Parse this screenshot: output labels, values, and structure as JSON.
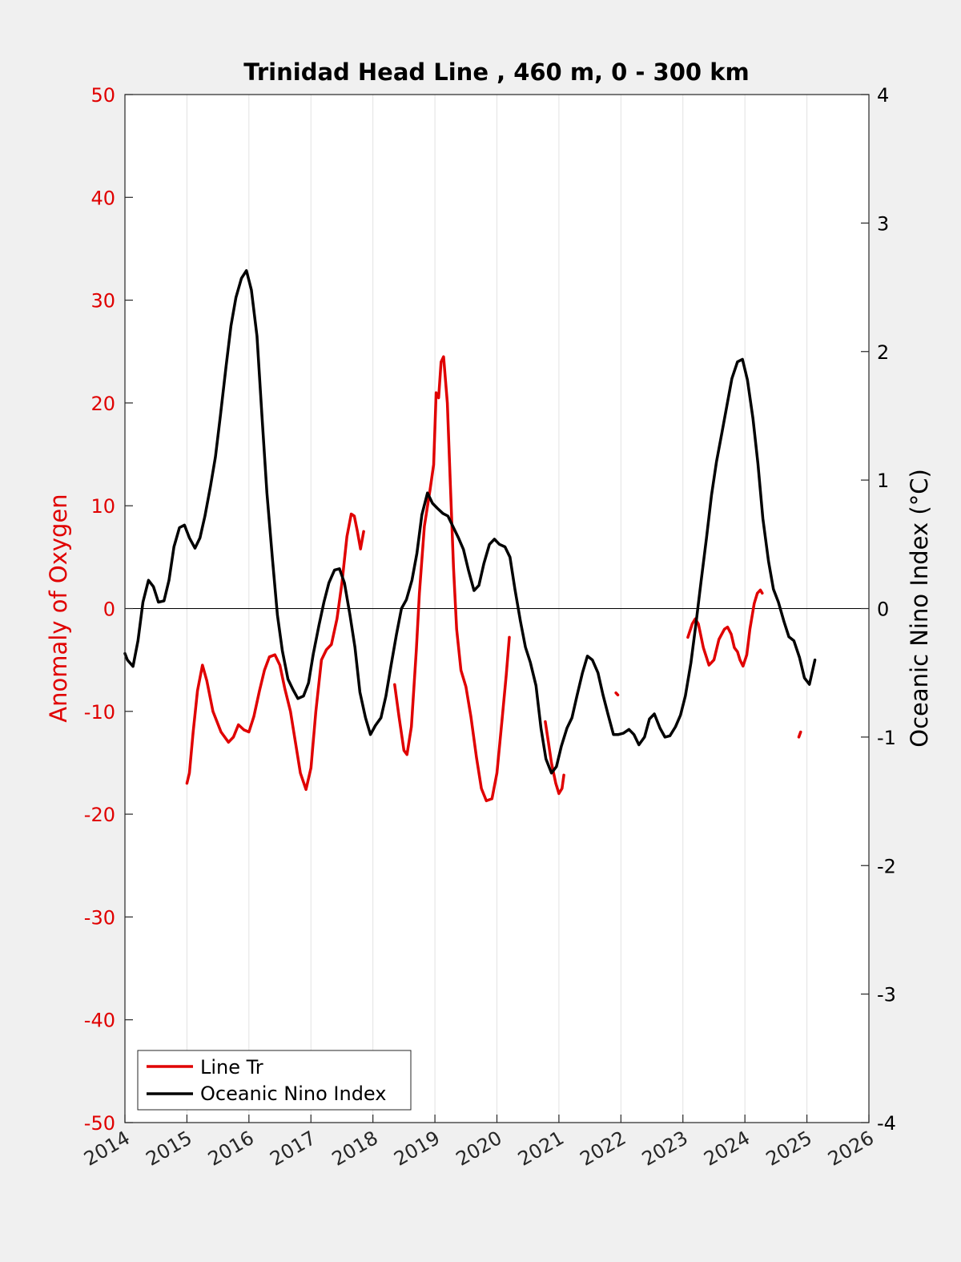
{
  "chart_data": {
    "type": "line",
    "title": "Trinidad Head Line , 460 m, 0 - 300 km",
    "ylabel_left": "Anomaly of Oxygen",
    "ylabel_right": "Oceanic Nino Index (°C)",
    "xlim": [
      2014,
      2026
    ],
    "ylim_left": [
      -50,
      50
    ],
    "ylim_right": [
      -4,
      4
    ],
    "x_ticks": [
      "2014",
      "2015",
      "2016",
      "2017",
      "2018",
      "2019",
      "2020",
      "2021",
      "2022",
      "2023",
      "2024",
      "2025",
      "2026"
    ],
    "y_ticks_left": [
      "50",
      "40",
      "30",
      "20",
      "10",
      "0",
      "-10",
      "-20",
      "-30",
      "-40",
      "-50"
    ],
    "y_ticks_right": [
      "4",
      "3",
      "2",
      "1",
      "0",
      "-1",
      "-2",
      "-3",
      "-4"
    ],
    "grid": "vertical",
    "legend_position": "bottom-left",
    "colors": {
      "line_tr": "#e00000",
      "oni": "#000000"
    },
    "series": [
      {
        "name": "Line Tr",
        "axis": "left",
        "segments": [
          [
            [
              2015.0,
              -17.0
            ],
            [
              2015.04,
              -16.0
            ],
            [
              2015.1,
              -12.0
            ],
            [
              2015.17,
              -8.0
            ],
            [
              2015.25,
              -5.5
            ],
            [
              2015.32,
              -7.0
            ],
            [
              2015.42,
              -10.0
            ],
            [
              2015.55,
              -12.0
            ],
            [
              2015.67,
              -13.0
            ],
            [
              2015.75,
              -12.5
            ],
            [
              2015.83,
              -11.3
            ],
            [
              2015.92,
              -11.8
            ],
            [
              2016.0,
              -12.0
            ],
            [
              2016.08,
              -10.5
            ],
            [
              2016.17,
              -8.0
            ],
            [
              2016.25,
              -6.0
            ],
            [
              2016.33,
              -4.7
            ],
            [
              2016.42,
              -4.5
            ],
            [
              2016.5,
              -5.5
            ],
            [
              2016.58,
              -7.8
            ],
            [
              2016.67,
              -10.0
            ],
            [
              2016.75,
              -13.0
            ],
            [
              2016.83,
              -16.0
            ],
            [
              2016.92,
              -17.6
            ],
            [
              2017.0,
              -15.5
            ],
            [
              2017.08,
              -10.0
            ],
            [
              2017.17,
              -5.0
            ],
            [
              2017.25,
              -4.0
            ],
            [
              2017.33,
              -3.5
            ],
            [
              2017.42,
              -1.0
            ],
            [
              2017.5,
              2.5
            ],
            [
              2017.58,
              7.0
            ],
            [
              2017.65,
              9.2
            ],
            [
              2017.7,
              9.0
            ],
            [
              2017.75,
              7.5
            ],
            [
              2017.8,
              5.8
            ],
            [
              2017.85,
              7.5
            ]
          ],
          [
            [
              2018.35,
              -7.4
            ],
            [
              2018.42,
              -10.5
            ],
            [
              2018.5,
              -13.8
            ],
            [
              2018.55,
              -14.2
            ],
            [
              2018.62,
              -11.5
            ],
            [
              2018.7,
              -4.0
            ],
            [
              2018.75,
              1.5
            ],
            [
              2018.83,
              8.0
            ],
            [
              2018.92,
              11.5
            ],
            [
              2018.98,
              14.0
            ],
            [
              2019.02,
              21.0
            ],
            [
              2019.06,
              20.5
            ],
            [
              2019.1,
              24.0
            ],
            [
              2019.14,
              24.5
            ],
            [
              2019.2,
              20.0
            ],
            [
              2019.25,
              12.0
            ],
            [
              2019.3,
              4.0
            ],
            [
              2019.35,
              -2.0
            ],
            [
              2019.42,
              -6.0
            ],
            [
              2019.5,
              -7.6
            ],
            [
              2019.58,
              -10.5
            ],
            [
              2019.67,
              -14.5
            ],
            [
              2019.75,
              -17.5
            ],
            [
              2019.83,
              -18.7
            ],
            [
              2019.92,
              -18.5
            ],
            [
              2020.0,
              -16.0
            ],
            [
              2020.08,
              -11.0
            ],
            [
              2020.15,
              -6.5
            ],
            [
              2020.2,
              -2.8
            ]
          ],
          [
            [
              2020.78,
              -11.0
            ],
            [
              2020.83,
              -13.0
            ],
            [
              2020.88,
              -15.0
            ],
            [
              2020.95,
              -17.0
            ],
            [
              2021.0,
              -18.0
            ],
            [
              2021.05,
              -17.5
            ],
            [
              2021.08,
              -16.2
            ]
          ],
          [
            [
              2021.92,
              -8.2
            ],
            [
              2021.95,
              -8.4
            ]
          ],
          [
            [
              2023.08,
              -2.8
            ],
            [
              2023.15,
              -1.5
            ],
            [
              2023.2,
              -1.0
            ],
            [
              2023.25,
              -1.5
            ],
            [
              2023.33,
              -3.8
            ],
            [
              2023.42,
              -5.5
            ],
            [
              2023.5,
              -5.0
            ],
            [
              2023.58,
              -3.0
            ],
            [
              2023.67,
              -2.0
            ],
            [
              2023.72,
              -1.8
            ],
            [
              2023.78,
              -2.5
            ],
            [
              2023.83,
              -3.8
            ],
            [
              2023.88,
              -4.2
            ],
            [
              2023.92,
              -5.0
            ],
            [
              2023.97,
              -5.6
            ],
            [
              2024.03,
              -4.5
            ],
            [
              2024.08,
              -2.0
            ],
            [
              2024.15,
              0.5
            ],
            [
              2024.2,
              1.5
            ],
            [
              2024.25,
              1.8
            ],
            [
              2024.28,
              1.5
            ]
          ],
          [
            [
              2024.87,
              -12.5
            ],
            [
              2024.9,
              -12.0
            ]
          ]
        ]
      },
      {
        "name": "Oceanic Nino Index",
        "axis": "right",
        "points": [
          [
            2014.0,
            -0.35
          ],
          [
            2014.04,
            -0.4
          ],
          [
            2014.13,
            -0.45
          ],
          [
            2014.21,
            -0.25
          ],
          [
            2014.29,
            0.05
          ],
          [
            2014.38,
            0.22
          ],
          [
            2014.46,
            0.17
          ],
          [
            2014.54,
            0.05
          ],
          [
            2014.63,
            0.06
          ],
          [
            2014.71,
            0.22
          ],
          [
            2014.79,
            0.48
          ],
          [
            2014.88,
            0.63
          ],
          [
            2014.96,
            0.65
          ],
          [
            2015.04,
            0.55
          ],
          [
            2015.13,
            0.47
          ],
          [
            2015.21,
            0.55
          ],
          [
            2015.29,
            0.72
          ],
          [
            2015.38,
            0.95
          ],
          [
            2015.46,
            1.18
          ],
          [
            2015.54,
            1.5
          ],
          [
            2015.63,
            1.88
          ],
          [
            2015.71,
            2.2
          ],
          [
            2015.79,
            2.42
          ],
          [
            2015.88,
            2.57
          ],
          [
            2015.96,
            2.63
          ],
          [
            2016.04,
            2.48
          ],
          [
            2016.13,
            2.12
          ],
          [
            2016.21,
            1.5
          ],
          [
            2016.29,
            0.9
          ],
          [
            2016.38,
            0.38
          ],
          [
            2016.46,
            -0.05
          ],
          [
            2016.54,
            -0.33
          ],
          [
            2016.63,
            -0.55
          ],
          [
            2016.71,
            -0.63
          ],
          [
            2016.79,
            -0.7
          ],
          [
            2016.88,
            -0.68
          ],
          [
            2016.96,
            -0.58
          ],
          [
            2017.04,
            -0.35
          ],
          [
            2017.13,
            -0.13
          ],
          [
            2017.21,
            0.05
          ],
          [
            2017.29,
            0.2
          ],
          [
            2017.38,
            0.3
          ],
          [
            2017.46,
            0.31
          ],
          [
            2017.54,
            0.2
          ],
          [
            2017.63,
            -0.05
          ],
          [
            2017.71,
            -0.3
          ],
          [
            2017.79,
            -0.65
          ],
          [
            2017.88,
            -0.85
          ],
          [
            2017.96,
            -0.98
          ],
          [
            2018.04,
            -0.91
          ],
          [
            2018.13,
            -0.85
          ],
          [
            2018.21,
            -0.68
          ],
          [
            2018.29,
            -0.45
          ],
          [
            2018.38,
            -0.2
          ],
          [
            2018.46,
            0.0
          ],
          [
            2018.54,
            0.07
          ],
          [
            2018.63,
            0.22
          ],
          [
            2018.71,
            0.43
          ],
          [
            2018.79,
            0.73
          ],
          [
            2018.88,
            0.9
          ],
          [
            2018.96,
            0.82
          ],
          [
            2019.04,
            0.78
          ],
          [
            2019.13,
            0.74
          ],
          [
            2019.21,
            0.72
          ],
          [
            2019.29,
            0.64
          ],
          [
            2019.38,
            0.55
          ],
          [
            2019.46,
            0.46
          ],
          [
            2019.54,
            0.3
          ],
          [
            2019.63,
            0.14
          ],
          [
            2019.71,
            0.18
          ],
          [
            2019.79,
            0.35
          ],
          [
            2019.88,
            0.5
          ],
          [
            2019.96,
            0.54
          ],
          [
            2020.04,
            0.5
          ],
          [
            2020.13,
            0.48
          ],
          [
            2020.21,
            0.4
          ],
          [
            2020.29,
            0.15
          ],
          [
            2020.38,
            -0.1
          ],
          [
            2020.46,
            -0.3
          ],
          [
            2020.54,
            -0.42
          ],
          [
            2020.63,
            -0.6
          ],
          [
            2020.71,
            -0.93
          ],
          [
            2020.79,
            -1.17
          ],
          [
            2020.88,
            -1.28
          ],
          [
            2020.96,
            -1.23
          ],
          [
            2021.04,
            -1.07
          ],
          [
            2021.13,
            -0.93
          ],
          [
            2021.21,
            -0.85
          ],
          [
            2021.29,
            -0.68
          ],
          [
            2021.38,
            -0.5
          ],
          [
            2021.46,
            -0.37
          ],
          [
            2021.54,
            -0.4
          ],
          [
            2021.63,
            -0.5
          ],
          [
            2021.71,
            -0.67
          ],
          [
            2021.79,
            -0.82
          ],
          [
            2021.88,
            -0.98
          ],
          [
            2021.96,
            -0.98
          ],
          [
            2022.04,
            -0.97
          ],
          [
            2022.13,
            -0.94
          ],
          [
            2022.21,
            -0.98
          ],
          [
            2022.29,
            -1.06
          ],
          [
            2022.38,
            -1.0
          ],
          [
            2022.46,
            -0.86
          ],
          [
            2022.54,
            -0.82
          ],
          [
            2022.63,
            -0.93
          ],
          [
            2022.71,
            -1.0
          ],
          [
            2022.79,
            -0.99
          ],
          [
            2022.88,
            -0.92
          ],
          [
            2022.96,
            -0.83
          ],
          [
            2023.04,
            -0.68
          ],
          [
            2023.13,
            -0.42
          ],
          [
            2023.21,
            -0.12
          ],
          [
            2023.29,
            0.2
          ],
          [
            2023.38,
            0.55
          ],
          [
            2023.46,
            0.88
          ],
          [
            2023.54,
            1.14
          ],
          [
            2023.63,
            1.37
          ],
          [
            2023.71,
            1.58
          ],
          [
            2023.79,
            1.79
          ],
          [
            2023.88,
            1.92
          ],
          [
            2023.96,
            1.94
          ],
          [
            2024.04,
            1.78
          ],
          [
            2024.13,
            1.48
          ],
          [
            2024.21,
            1.13
          ],
          [
            2024.29,
            0.7
          ],
          [
            2024.38,
            0.37
          ],
          [
            2024.46,
            0.15
          ],
          [
            2024.54,
            0.05
          ],
          [
            2024.63,
            -0.1
          ],
          [
            2024.71,
            -0.22
          ],
          [
            2024.79,
            -0.25
          ],
          [
            2024.88,
            -0.38
          ],
          [
            2024.96,
            -0.54
          ],
          [
            2025.04,
            -0.59
          ],
          [
            2025.13,
            -0.4
          ]
        ]
      }
    ]
  },
  "legend": {
    "items": [
      {
        "label": "Line Tr",
        "color": "#e00000"
      },
      {
        "label": "Oceanic Nino Index",
        "color": "#000000"
      }
    ]
  }
}
